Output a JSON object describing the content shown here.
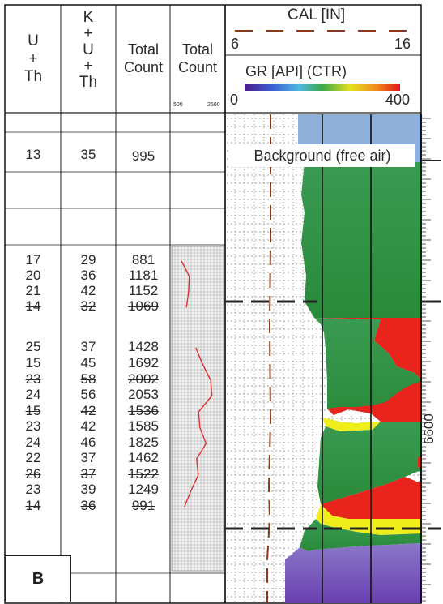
{
  "columns": {
    "u_th": [
      "U",
      "+",
      "Th"
    ],
    "k_u_th": [
      "K",
      "+",
      "U",
      "+",
      "Th"
    ],
    "total_count_1": [
      "Total",
      "Count"
    ],
    "total_count_2": [
      "Total",
      "Count"
    ],
    "mini_scale_min": "500",
    "mini_scale_max": "2500"
  },
  "curves": {
    "cal_label": "CAL [IN]",
    "cal_min": "6",
    "cal_max": "16",
    "gr_label": "GR [API] (CTR)",
    "gr_min": "0",
    "gr_max": "400"
  },
  "background_row": {
    "u_th": "13",
    "k_u_th": "35",
    "total": "995",
    "label": "Background (free air)"
  },
  "rows": [
    {
      "u_th": "17",
      "k_u_th": "29",
      "total": "881"
    },
    {
      "u_th": "20",
      "k_u_th": "36",
      "total": "1181"
    },
    {
      "u_th": "21",
      "k_u_th": "42",
      "total": "1152"
    },
    {
      "u_th": "14",
      "k_u_th": "32",
      "total": "1069"
    },
    {
      "u_th": "25",
      "k_u_th": "37",
      "total": "1428"
    },
    {
      "u_th": "15",
      "k_u_th": "45",
      "total": "1692"
    },
    {
      "u_th": "23",
      "k_u_th": "58",
      "total": "2002"
    },
    {
      "u_th": "24",
      "k_u_th": "56",
      "total": "2053"
    },
    {
      "u_th": "15",
      "k_u_th": "42",
      "total": "1536"
    },
    {
      "u_th": "23",
      "k_u_th": "42",
      "total": "1585"
    },
    {
      "u_th": "24",
      "k_u_th": "46",
      "total": "1825"
    },
    {
      "u_th": "22",
      "k_u_th": "37",
      "total": "1462"
    },
    {
      "u_th": "26",
      "k_u_th": "37",
      "total": "1522"
    },
    {
      "u_th": "23",
      "k_u_th": "39",
      "total": "1249"
    },
    {
      "u_th": "14",
      "k_u_th": "36",
      "total": "991"
    }
  ],
  "depth_label": "6600",
  "panel_label": "B",
  "colors": {
    "gr_green": "#2e8b3a",
    "gr_blue": "#8fb0d8",
    "gr_red": "#e8241c",
    "gr_yellow": "#f0ee1a",
    "gr_violet": "#7c5cbf",
    "cal_line": "#8b3a1c",
    "mini_curve": "#e03030"
  }
}
